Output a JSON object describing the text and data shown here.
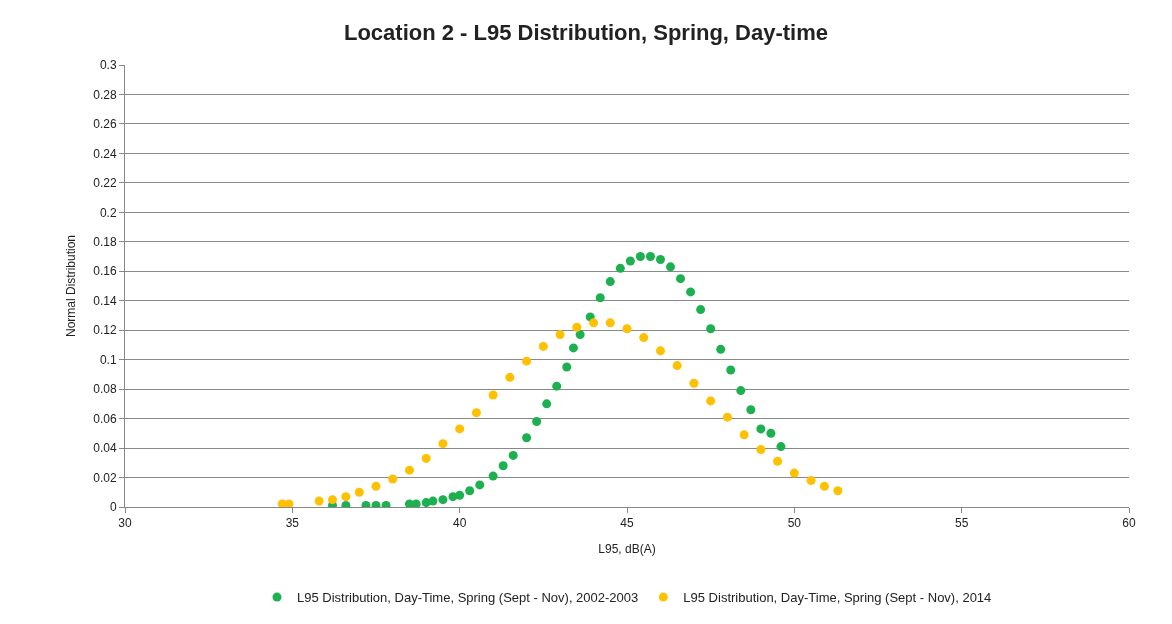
{
  "chart_data": {
    "type": "scatter",
    "title": "Location 2 - L95 Distribution, Spring, Day-time",
    "xlabel": "L95, dB(A)",
    "ylabel": "Normal Distribution",
    "xlim": [
      30,
      60
    ],
    "xticks": [
      30,
      35,
      40,
      45,
      50,
      55,
      60
    ],
    "ylim": [
      0,
      0.3
    ],
    "yticks": [
      0,
      0.02,
      0.04,
      0.06,
      0.08,
      0.1,
      0.12,
      0.14,
      0.16,
      0.18,
      0.2,
      0.22,
      0.24,
      0.26,
      0.28,
      0.3
    ],
    "grid": "y",
    "legend": "bottom",
    "marker": "circle",
    "series": [
      {
        "name": "L95 Distribution, Day-Time, Spring (Sept - Nov), 2002-2003",
        "color": "#1db050",
        "x": [
          36.2,
          36.6,
          37.2,
          37.5,
          37.8,
          38.5,
          38.7,
          39.0,
          39.2,
          39.5,
          39.8,
          40.0,
          40.3,
          40.6,
          41.0,
          41.3,
          41.6,
          42.0,
          42.3,
          42.6,
          42.9,
          43.2,
          43.4,
          43.6,
          43.9,
          44.2,
          44.5,
          44.8,
          45.1,
          45.4,
          45.7,
          46.0,
          46.3,
          46.6,
          46.9,
          47.2,
          47.5,
          47.8,
          48.1,
          48.4,
          48.7,
          49.0,
          49.3,
          49.6
        ],
        "values": [
          0.001,
          0.001,
          0.001,
          0.001,
          0.001,
          0.002,
          0.002,
          0.003,
          0.004,
          0.005,
          0.007,
          0.008,
          0.011,
          0.015,
          0.021,
          0.028,
          0.035,
          0.047,
          0.058,
          0.07,
          0.082,
          0.095,
          0.108,
          0.117,
          0.129,
          0.142,
          0.153,
          0.162,
          0.167,
          0.17,
          0.17,
          0.168,
          0.163,
          0.155,
          0.146,
          0.134,
          0.121,
          0.107,
          0.093,
          0.079,
          0.066,
          0.053,
          0.05,
          0.041
        ]
      },
      {
        "name": "L95 Distribution, Day-Time, Spring (Sept - Nov), 2014",
        "color": "#ffc000",
        "x": [
          34.7,
          34.9,
          35.8,
          36.2,
          36.6,
          37.0,
          37.5,
          38.0,
          38.5,
          39.0,
          39.5,
          40.0,
          40.5,
          41.0,
          41.5,
          42.0,
          42.5,
          43.0,
          43.5,
          44.0,
          44.5,
          45.0,
          45.5,
          46.0,
          46.5,
          47.0,
          47.5,
          48.0,
          48.5,
          49.0,
          49.5,
          50.0,
          50.5,
          50.9,
          51.3
        ],
        "values": [
          0.002,
          0.002,
          0.004,
          0.005,
          0.007,
          0.01,
          0.014,
          0.019,
          0.025,
          0.033,
          0.043,
          0.053,
          0.064,
          0.076,
          0.088,
          0.099,
          0.109,
          0.117,
          0.122,
          0.125,
          0.125,
          0.121,
          0.115,
          0.106,
          0.096,
          0.084,
          0.072,
          0.061,
          0.049,
          0.039,
          0.031,
          0.023,
          0.018,
          0.014,
          0.011
        ]
      }
    ]
  }
}
